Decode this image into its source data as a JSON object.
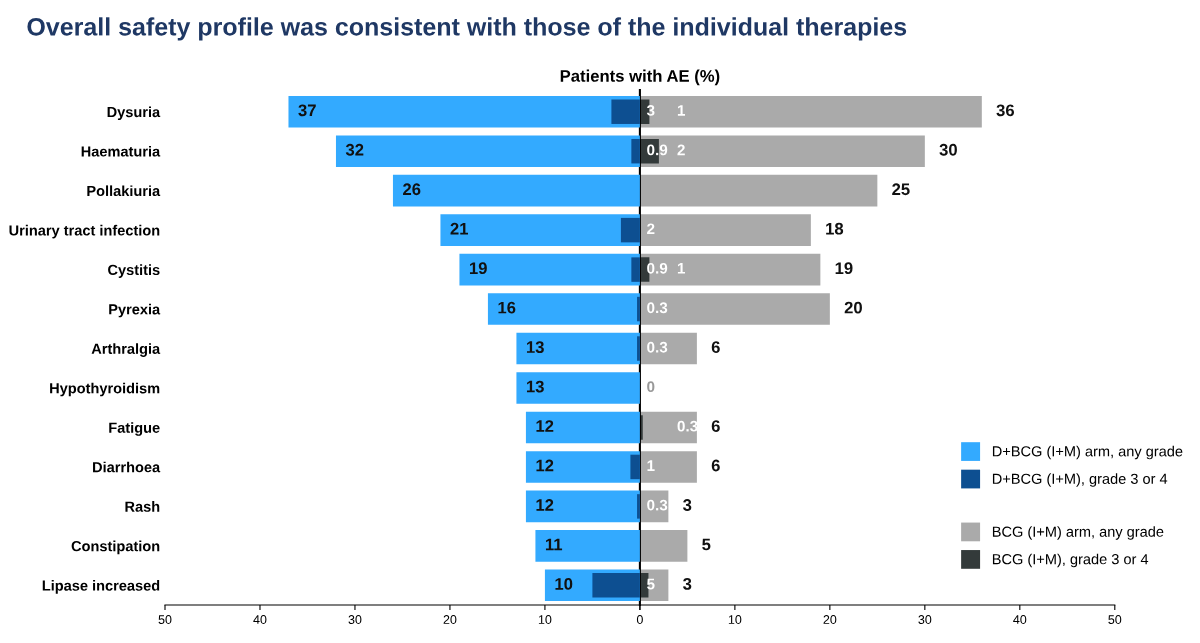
{
  "chart_data": [
    {
      "type": "bar",
      "orientation": "horizontal",
      "title": "Overall safety profile was consistent with those of the individual therapies",
      "xlabel": "Patients with AE (%)",
      "categories": [
        "Dysuria",
        "Haematuria",
        "Pollakiuria",
        "Urinary tract infection",
        "Cystitis",
        "Pyrexia",
        "Arthralgia",
        "Hypothyroidism",
        "Fatigue",
        "Diarrhoea",
        "Rash",
        "Constipation",
        "Lipase increased"
      ],
      "series": [
        {
          "name": "D+BCG (I+M) arm, any grade",
          "color": "#33aaff",
          "values": [
            37,
            32,
            26,
            21,
            19,
            16,
            13,
            13,
            12,
            12,
            12,
            11,
            10
          ],
          "value_labels": [
            "37",
            "32",
            "26",
            "21",
            "19",
            "16",
            "13",
            "13",
            "12",
            "12",
            "12",
            "11",
            "10"
          ]
        },
        {
          "name": "D+BCG (I+M), grade 3 or 4",
          "color": "#0d4f91",
          "values": [
            3,
            0.9,
            null,
            2,
            0.9,
            0.3,
            0.3,
            0,
            null,
            1,
            0.3,
            null,
            5
          ],
          "value_labels": [
            "3",
            "0.9",
            null,
            "2",
            "0.9",
            "0.3",
            "0.3",
            "0",
            null,
            "1",
            "0.3",
            null,
            "5"
          ]
        }
      ],
      "xlim": [
        50,
        0
      ],
      "xticks": [
        50,
        40,
        30,
        20,
        10,
        {
          "value": 0,
          "label": null
        }
      ],
      "grid": false,
      "legend": "bottom right"
    },
    {
      "type": "bar",
      "orientation": "horizontal",
      "categories": [
        null,
        null,
        null,
        null,
        null,
        null,
        null,
        null,
        null,
        null,
        null,
        null,
        null
      ],
      "series": [
        {
          "name": "BCG (I+M) arm, any grade",
          "color": "#aaaaaa",
          "values": [
            36,
            30,
            25,
            18,
            19,
            20,
            6,
            null,
            6,
            6,
            3,
            5,
            3
          ],
          "value_labels": [
            "36",
            "30",
            "25",
            "18",
            "19",
            "20",
            "6",
            null,
            "6",
            "6",
            "3",
            "5",
            "3"
          ]
        },
        {
          "name": "BCG (I+M), grade 3 or 4",
          "color": "#333a3a",
          "values": [
            1,
            2,
            null,
            null,
            1,
            null,
            null,
            null,
            0.3,
            null,
            null,
            null,
            0.9
          ],
          "value_labels": [
            "1",
            "2",
            null,
            null,
            "1",
            null,
            null,
            null,
            "0.3",
            null,
            null,
            null,
            null
          ]
        }
      ],
      "xlim": [
        0,
        50
      ],
      "xticks": [
        0,
        10,
        20,
        30,
        40,
        50
      ],
      "grid": false,
      "legend": "bottom right"
    }
  ]
}
